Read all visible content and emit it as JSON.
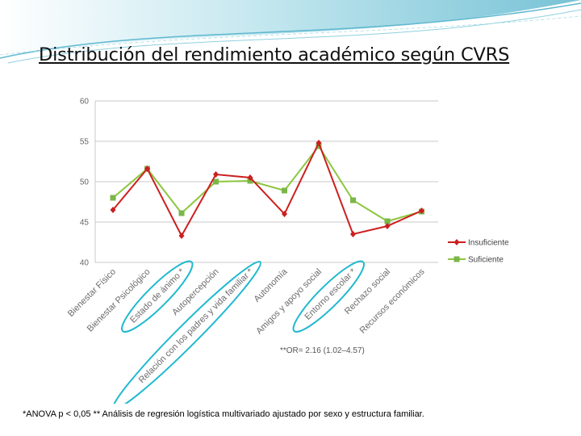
{
  "page": {
    "title": "Distribución del rendimiento académico según CVRS",
    "footnote": "*ANOVA  p < 0,05  ** Análisis de regresión logística multivariado ajustado por  sexo y estructura familiar."
  },
  "colors": {
    "banner": "#7ec8d8",
    "insuficiente": "#cc1f1f",
    "suficiente": "#8cc63f",
    "suficiente_marker": "#7ab648",
    "highlight": "#21b9cf",
    "grid": "#c8c8c8"
  },
  "chart_data": {
    "type": "line",
    "title": "",
    "xlabel": "",
    "ylabel": "",
    "ylim": [
      40,
      60
    ],
    "y_ticks": [
      "60",
      "55",
      "50",
      "45",
      "40"
    ],
    "y_tick_values": [
      60,
      55,
      50,
      45,
      40
    ],
    "grid": true,
    "legend_position": "right",
    "categories": [
      "Bienestar Físico",
      "Bienestar Psicológico",
      "Estado de ánimo *",
      "Autopercepción",
      "Relación con los padres y vida familiar *",
      "Autonomía",
      "Amigos y apoyo social",
      "Entorno escolar *",
      "Rechazo social",
      "Recursos económicos"
    ],
    "series": [
      {
        "name": "Insuficiente",
        "values": [
          46.5,
          51.6,
          43.3,
          50.9,
          50.5,
          46.0,
          54.8,
          43.5,
          44.5,
          46.4
        ]
      },
      {
        "name": "Suficiente",
        "values": [
          48.0,
          51.6,
          46.1,
          50.0,
          50.1,
          48.9,
          54.4,
          47.7,
          45.1,
          46.3
        ]
      }
    ],
    "annotation": "**OR= 2.16 (1.02–4.57)"
  }
}
